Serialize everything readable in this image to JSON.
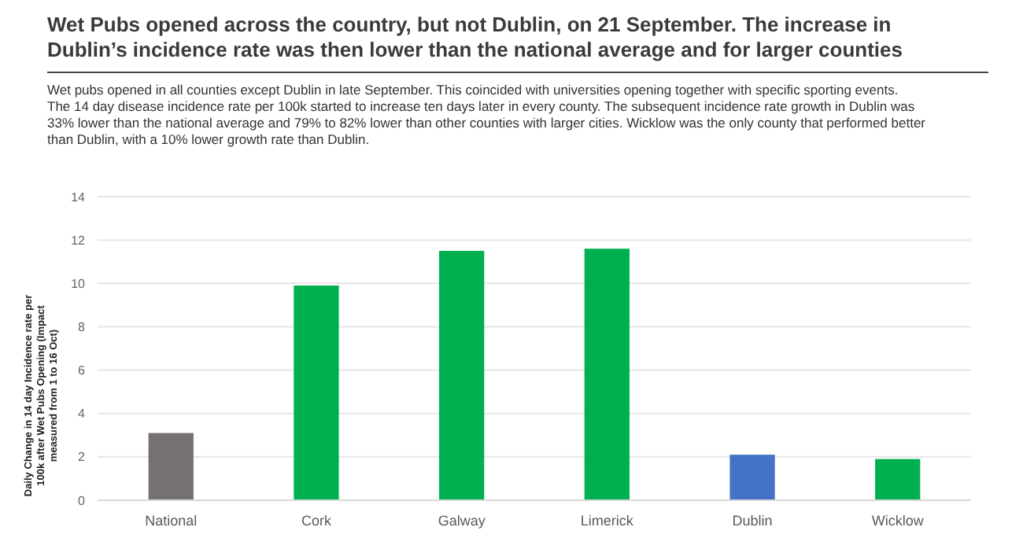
{
  "chart_data": {
    "type": "bar",
    "title": "Wet Pubs opened across the country, but not Dublin, on 21 September.  The increase in Dublin’s incidence rate was then lower than the national average and for larger counties",
    "subtitle": "Wet pubs opened in all counties except Dublin in late September.  This coincided with universities opening together with specific sporting events.  The 14 day disease incidence rate per 100k started to increase ten days later in every county.   The subsequent incidence rate growth in Dublin was 33% lower than the national average and 79% to 82% lower than other counties with larger cities.  Wicklow was the only county that performed better than Dublin, with a 10% lower growth rate than Dublin.",
    "ylabel": "Daily Change in 14 day Incidence rate per 100k  after Wet Pubs Opening (Impact measured from 1 to 16 Oct)",
    "categories": [
      "National",
      "Cork",
      "Galway",
      "Limerick",
      "Dublin",
      "Wicklow"
    ],
    "values": [
      3.1,
      9.9,
      11.5,
      11.6,
      2.1,
      1.9
    ],
    "colors": [
      "#767171",
      "#00b050",
      "#00b050",
      "#00b050",
      "#4472c4",
      "#00b050"
    ],
    "ylim": [
      0,
      14
    ],
    "yticks": [
      0,
      2,
      4,
      6,
      8,
      10,
      12,
      14
    ],
    "grid": "y"
  }
}
